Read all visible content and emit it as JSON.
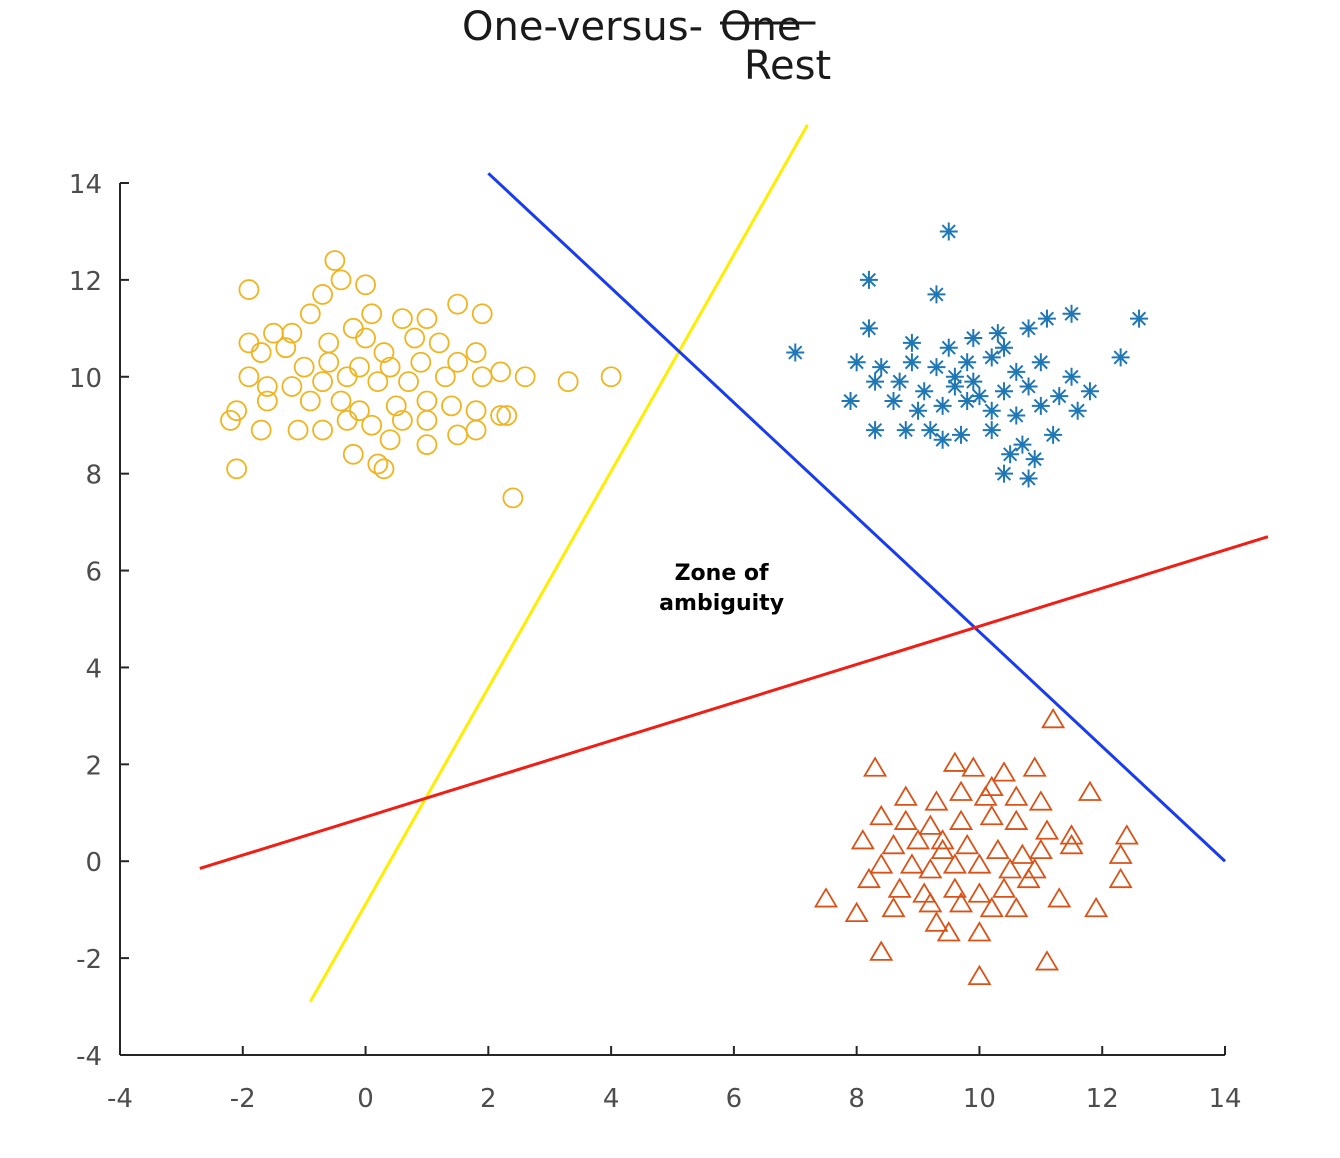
{
  "chart_data": {
    "type": "scatter",
    "title_main": "One-versus-",
    "title_struck": "One",
    "title_replacement": "Rest",
    "xlabel": "",
    "ylabel": "",
    "xlim": [
      -4,
      14
    ],
    "ylim": [
      -4,
      14
    ],
    "x_ticks": [
      -4,
      -2,
      0,
      2,
      4,
      6,
      8,
      10,
      12,
      14
    ],
    "y_ticks": [
      -4,
      -2,
      0,
      2,
      4,
      6,
      8,
      10,
      12,
      14
    ],
    "grid": false,
    "legend": "none",
    "annotation": {
      "lines": [
        "Zone of",
        "ambiguity"
      ],
      "x": 5.8,
      "y": 5.8
    },
    "series": [
      {
        "marker": "circle",
        "color": "#f0b41e",
        "points": [
          [
            -1.9,
            11.8
          ],
          [
            -0.5,
            12.4
          ],
          [
            -0.4,
            12.0
          ],
          [
            0.0,
            11.9
          ],
          [
            -0.7,
            11.7
          ],
          [
            -0.9,
            11.3
          ],
          [
            -0.2,
            11.0
          ],
          [
            0.1,
            11.3
          ],
          [
            0.6,
            11.2
          ],
          [
            1.0,
            11.2
          ],
          [
            1.5,
            11.5
          ],
          [
            1.9,
            11.3
          ],
          [
            -1.5,
            10.9
          ],
          [
            -1.2,
            10.9
          ],
          [
            -1.3,
            10.6
          ],
          [
            -1.7,
            10.5
          ],
          [
            -1.9,
            10.7
          ],
          [
            -0.6,
            10.7
          ],
          [
            0.0,
            10.8
          ],
          [
            0.3,
            10.5
          ],
          [
            0.8,
            10.8
          ],
          [
            1.2,
            10.7
          ],
          [
            1.8,
            10.5
          ],
          [
            -1.0,
            10.2
          ],
          [
            -0.6,
            10.3
          ],
          [
            -0.1,
            10.2
          ],
          [
            0.4,
            10.2
          ],
          [
            0.9,
            10.3
          ],
          [
            1.5,
            10.3
          ],
          [
            2.2,
            10.1
          ],
          [
            2.6,
            10.0
          ],
          [
            1.9,
            10.0
          ],
          [
            1.3,
            10.0
          ],
          [
            0.7,
            9.9
          ],
          [
            0.2,
            9.9
          ],
          [
            -0.3,
            10.0
          ],
          [
            -0.7,
            9.9
          ],
          [
            -1.6,
            9.8
          ],
          [
            -1.9,
            10.0
          ],
          [
            -2.1,
            9.3
          ],
          [
            -1.6,
            9.5
          ],
          [
            -1.2,
            9.8
          ],
          [
            -0.9,
            9.5
          ],
          [
            -0.4,
            9.5
          ],
          [
            -0.1,
            9.3
          ],
          [
            0.5,
            9.4
          ],
          [
            1.0,
            9.5
          ],
          [
            1.4,
            9.4
          ],
          [
            1.8,
            9.3
          ],
          [
            2.3,
            9.2
          ],
          [
            3.3,
            9.9
          ],
          [
            4.0,
            10.0
          ],
          [
            -2.2,
            9.1
          ],
          [
            -1.7,
            8.9
          ],
          [
            -1.1,
            8.9
          ],
          [
            -0.7,
            8.9
          ],
          [
            -0.3,
            9.1
          ],
          [
            0.1,
            9.0
          ],
          [
            0.6,
            9.1
          ],
          [
            1.0,
            9.1
          ],
          [
            1.5,
            8.8
          ],
          [
            1.8,
            8.9
          ],
          [
            2.2,
            9.2
          ],
          [
            0.4,
            8.7
          ],
          [
            1.0,
            8.6
          ],
          [
            -0.2,
            8.4
          ],
          [
            0.3,
            8.1
          ],
          [
            -2.1,
            8.1
          ],
          [
            2.4,
            7.5
          ],
          [
            0.2,
            8.2
          ]
        ]
      },
      {
        "marker": "star",
        "color": "#1f77b4",
        "points": [
          [
            9.5,
            13.0
          ],
          [
            8.2,
            12.0
          ],
          [
            9.3,
            11.7
          ],
          [
            8.2,
            11.0
          ],
          [
            8.9,
            10.7
          ],
          [
            9.5,
            10.6
          ],
          [
            9.9,
            10.8
          ],
          [
            10.3,
            10.9
          ],
          [
            10.8,
            11.0
          ],
          [
            11.1,
            11.2
          ],
          [
            11.5,
            11.3
          ],
          [
            12.6,
            11.2
          ],
          [
            7.0,
            10.5
          ],
          [
            8.0,
            10.3
          ],
          [
            8.4,
            10.2
          ],
          [
            8.9,
            10.3
          ],
          [
            9.3,
            10.2
          ],
          [
            9.8,
            10.3
          ],
          [
            10.2,
            10.4
          ],
          [
            10.6,
            10.1
          ],
          [
            11.0,
            10.3
          ],
          [
            11.5,
            10.0
          ],
          [
            12.3,
            10.4
          ],
          [
            8.3,
            9.9
          ],
          [
            8.7,
            9.9
          ],
          [
            9.1,
            9.7
          ],
          [
            9.6,
            9.8
          ],
          [
            10.0,
            9.6
          ],
          [
            10.4,
            9.7
          ],
          [
            10.8,
            9.8
          ],
          [
            11.3,
            9.6
          ],
          [
            11.8,
            9.7
          ],
          [
            7.9,
            9.5
          ],
          [
            8.6,
            9.5
          ],
          [
            9.0,
            9.3
          ],
          [
            9.4,
            9.4
          ],
          [
            9.8,
            9.5
          ],
          [
            10.2,
            9.3
          ],
          [
            10.6,
            9.2
          ],
          [
            11.0,
            9.4
          ],
          [
            11.6,
            9.3
          ],
          [
            8.3,
            8.9
          ],
          [
            8.8,
            8.9
          ],
          [
            9.2,
            8.9
          ],
          [
            9.7,
            8.8
          ],
          [
            10.2,
            8.9
          ],
          [
            10.7,
            8.6
          ],
          [
            11.2,
            8.8
          ],
          [
            9.4,
            8.7
          ],
          [
            10.5,
            8.4
          ],
          [
            10.9,
            8.3
          ],
          [
            10.4,
            8.0
          ],
          [
            10.8,
            7.9
          ],
          [
            9.9,
            9.9
          ],
          [
            10.4,
            10.6
          ],
          [
            9.6,
            10.0
          ]
        ]
      },
      {
        "marker": "triangle",
        "color": "#d95319",
        "points": [
          [
            11.2,
            2.9
          ],
          [
            8.3,
            1.9
          ],
          [
            9.6,
            2.0
          ],
          [
            9.9,
            1.9
          ],
          [
            10.4,
            1.8
          ],
          [
            10.9,
            1.9
          ],
          [
            8.8,
            1.3
          ],
          [
            9.3,
            1.2
          ],
          [
            9.7,
            1.4
          ],
          [
            10.1,
            1.3
          ],
          [
            10.6,
            1.3
          ],
          [
            11.0,
            1.2
          ],
          [
            11.8,
            1.4
          ],
          [
            8.4,
            0.9
          ],
          [
            8.8,
            0.8
          ],
          [
            9.2,
            0.7
          ],
          [
            9.7,
            0.8
          ],
          [
            10.2,
            0.9
          ],
          [
            10.6,
            0.8
          ],
          [
            11.1,
            0.6
          ],
          [
            11.5,
            0.5
          ],
          [
            12.4,
            0.5
          ],
          [
            8.1,
            0.4
          ],
          [
            8.6,
            0.3
          ],
          [
            9.0,
            0.4
          ],
          [
            9.4,
            0.2
          ],
          [
            9.8,
            0.3
          ],
          [
            10.3,
            0.2
          ],
          [
            10.7,
            0.1
          ],
          [
            11.0,
            0.2
          ],
          [
            11.5,
            0.3
          ],
          [
            12.3,
            0.1
          ],
          [
            8.4,
            -0.1
          ],
          [
            8.9,
            -0.1
          ],
          [
            9.2,
            -0.2
          ],
          [
            9.6,
            -0.1
          ],
          [
            10.0,
            -0.1
          ],
          [
            10.5,
            -0.2
          ],
          [
            10.9,
            -0.2
          ],
          [
            8.2,
            -0.4
          ],
          [
            8.7,
            -0.6
          ],
          [
            9.1,
            -0.7
          ],
          [
            9.6,
            -0.6
          ],
          [
            10.0,
            -0.7
          ],
          [
            10.4,
            -0.6
          ],
          [
            10.8,
            -0.4
          ],
          [
            12.3,
            -0.4
          ],
          [
            7.5,
            -0.8
          ],
          [
            8.0,
            -1.1
          ],
          [
            8.6,
            -1.0
          ],
          [
            9.2,
            -0.9
          ],
          [
            9.7,
            -0.9
          ],
          [
            10.2,
            -1.0
          ],
          [
            10.6,
            -1.0
          ],
          [
            11.3,
            -0.8
          ],
          [
            11.9,
            -1.0
          ],
          [
            9.3,
            -1.3
          ],
          [
            9.5,
            -1.5
          ],
          [
            10.0,
            -1.5
          ],
          [
            11.1,
            -2.1
          ],
          [
            10.0,
            -2.4
          ],
          [
            8.4,
            -1.9
          ],
          [
            10.2,
            1.5
          ],
          [
            9.4,
            0.4
          ]
        ]
      }
    ],
    "boundaries": [
      {
        "color": "#ffee00",
        "x": [
          -0.9,
          7.2
        ],
        "y": [
          -2.9,
          15.2
        ]
      },
      {
        "color": "#1a3cf0",
        "x": [
          2.0,
          14.0
        ],
        "y": [
          14.2,
          0.0
        ]
      },
      {
        "color": "#f01e14",
        "x": [
          -2.7,
          14.7
        ],
        "y": [
          -0.15,
          6.7
        ]
      }
    ]
  }
}
